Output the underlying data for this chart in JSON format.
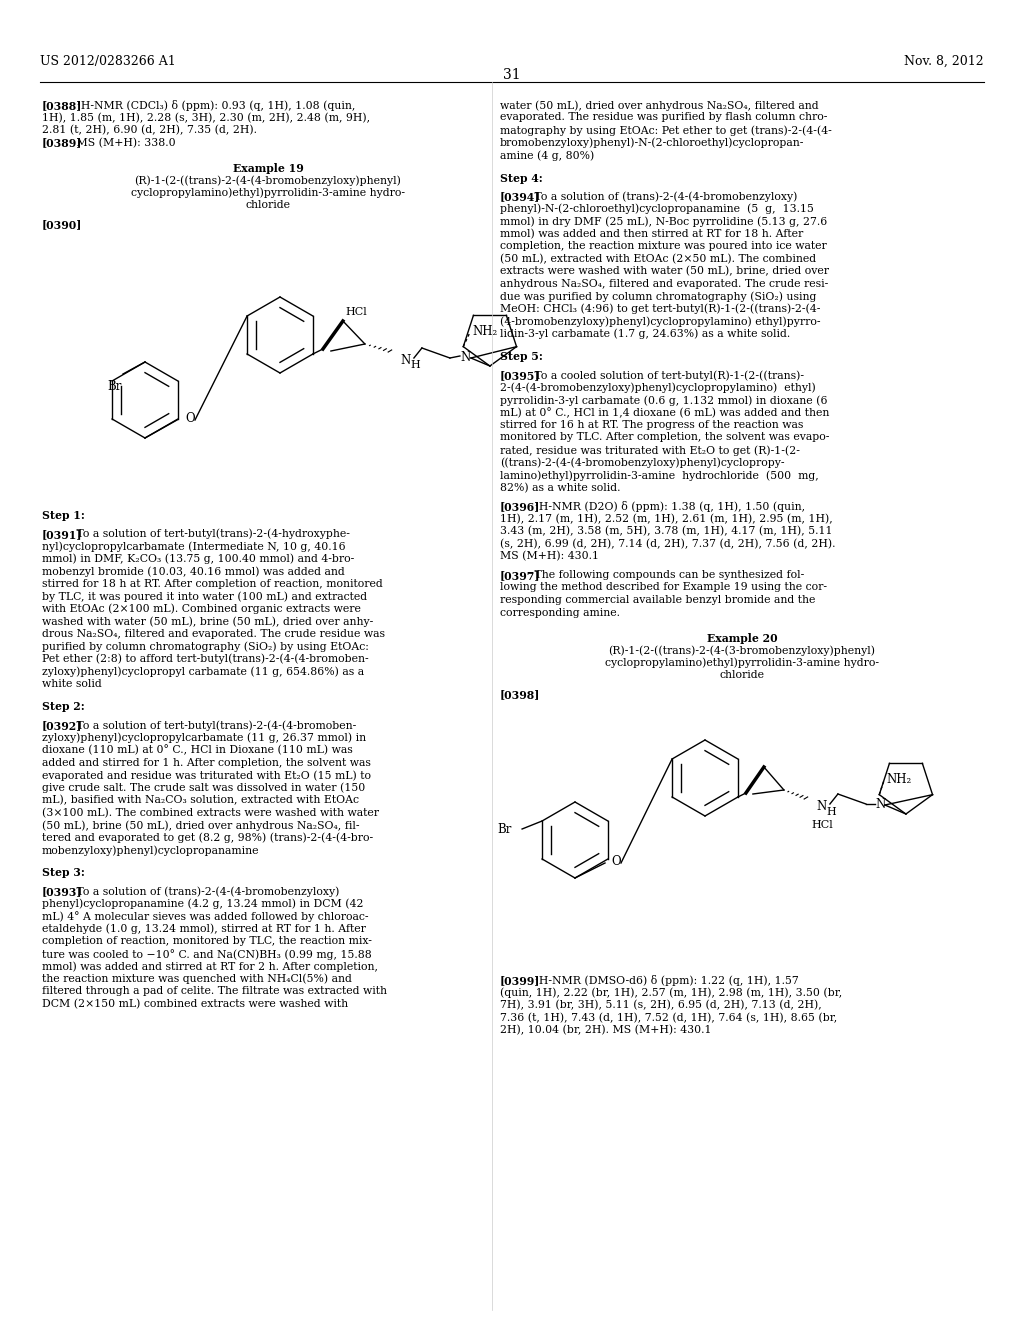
{
  "page_header_left": "US 2012/0283266 A1",
  "page_header_right": "Nov. 8, 2012",
  "page_number": "31",
  "background_color": "#ffffff",
  "text_color": "#000000",
  "font_size_body": 7.8,
  "font_size_header": 9.0,
  "font_size_page_num": 10.0
}
